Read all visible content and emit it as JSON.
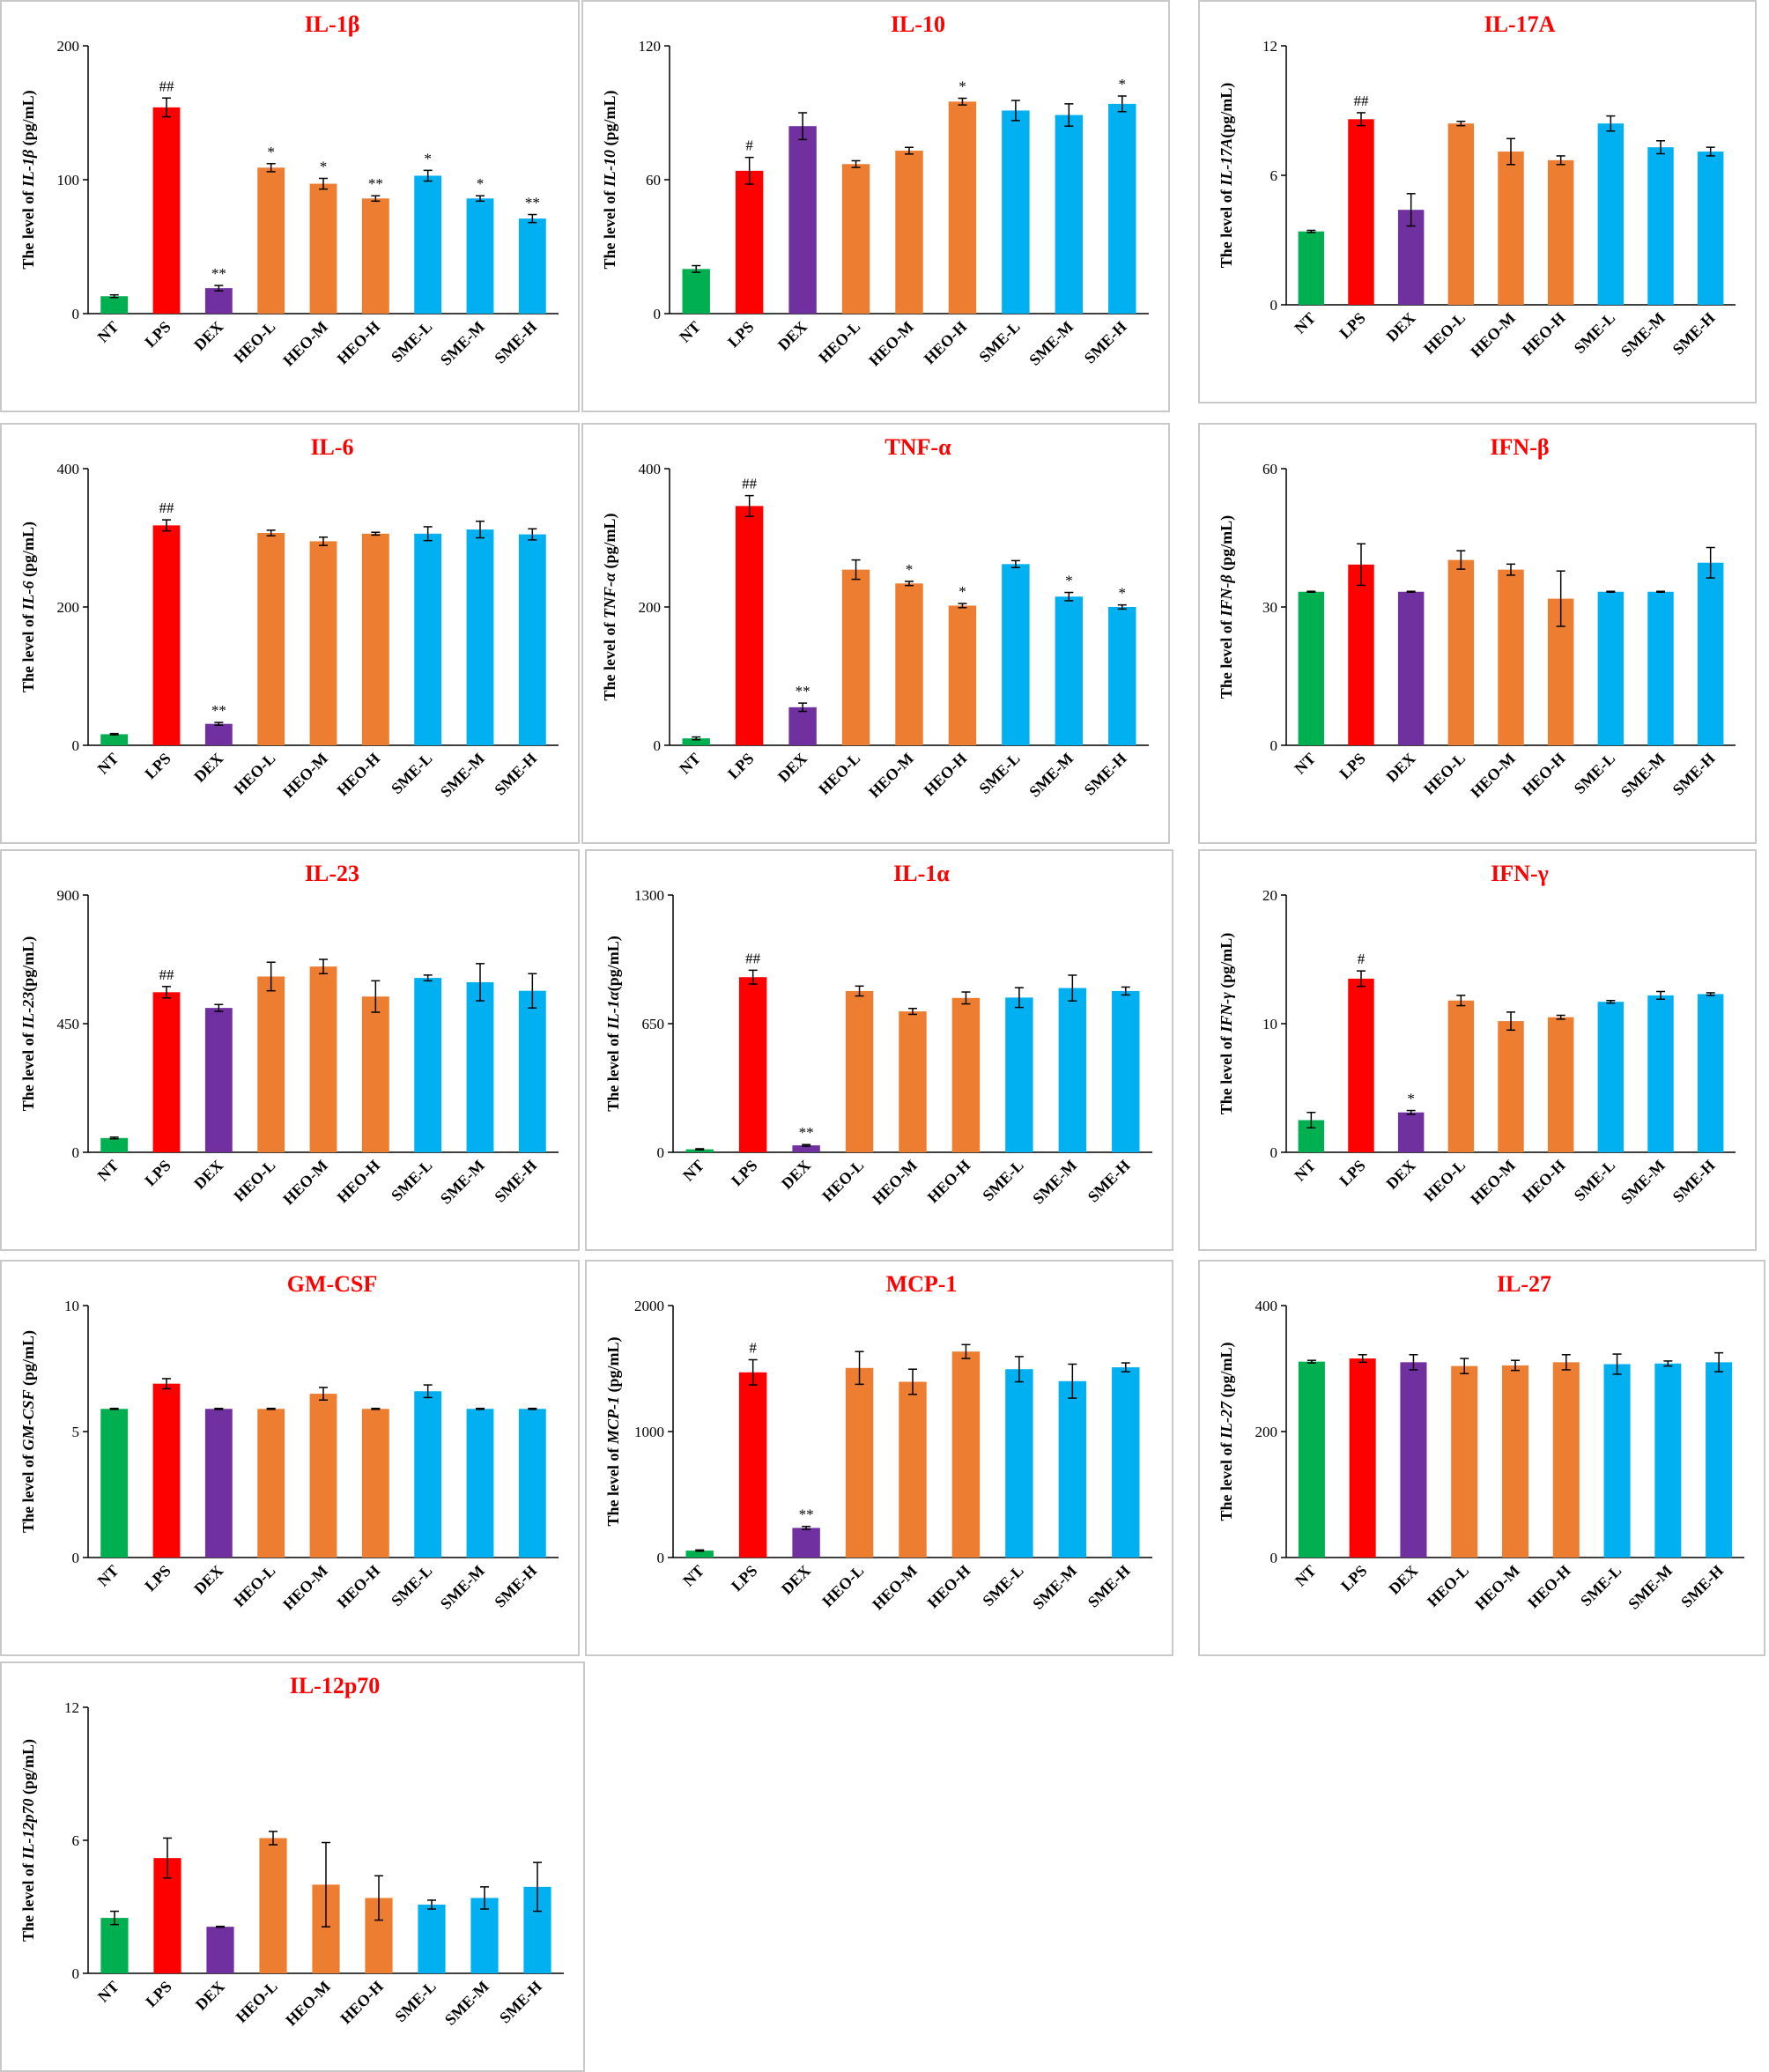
{
  "colors": {
    "NT": "#00b050",
    "LPS": "#ff0000",
    "DEX": "#7030a0",
    "HEO": "#ed7d31",
    "SME": "#00b0f0",
    "title": "#ff0000",
    "axis": "#000000"
  },
  "chart_data": [
    {
      "type": "bar",
      "title": "IL-1β",
      "ylabel_prefix": "The level of ",
      "ylabel_italic": "IL-1β",
      "ylabel_suffix": " (pg/mL)",
      "ylim": [
        0,
        200
      ],
      "yticks": [
        "0",
        "100",
        "200"
      ],
      "categories": [
        "NT",
        "LPS",
        "DEX",
        "HEO-L",
        "HEO-M",
        "HEO-H",
        "SME-L",
        "SME-M",
        "SME-H"
      ],
      "values": [
        13,
        154,
        19,
        109,
        97,
        86,
        103,
        86,
        71
      ],
      "errors": [
        1,
        7,
        2,
        3,
        4,
        2,
        4,
        2,
        3
      ],
      "labels": [
        "",
        "##",
        "**",
        "*",
        "*",
        "**",
        "*",
        "*",
        "**"
      ]
    },
    {
      "type": "bar",
      "title": "IL-10",
      "ylabel_prefix": "The level of ",
      "ylabel_italic": "IL-10",
      "ylabel_suffix": " (pg/mL)",
      "ylim": [
        0,
        120
      ],
      "yticks": [
        "0",
        "60",
        "120"
      ],
      "categories": [
        "NT",
        "LPS",
        "DEX",
        "HEO-L",
        "HEO-M",
        "HEO-H",
        "SME-L",
        "SME-M",
        "SME-H"
      ],
      "values": [
        20,
        64,
        84,
        67,
        73,
        95,
        91,
        89,
        94
      ],
      "errors": [
        1.5,
        6,
        6,
        1.5,
        1.5,
        1.5,
        4.5,
        5,
        3.5
      ],
      "labels": [
        "",
        "#",
        "",
        "",
        "",
        "*",
        "",
        "",
        "*"
      ]
    },
    {
      "type": "bar",
      "title": "IL-17A",
      "ylabel_prefix": "The level of ",
      "ylabel_italic": "IL-17A",
      "ylabel_suffix": "(pg/mL)",
      "ylim": [
        0,
        12
      ],
      "yticks": [
        "0",
        "6",
        "12"
      ],
      "categories": [
        "NT",
        "LPS",
        "DEX",
        "HEO-L",
        "HEO-M",
        "HEO-H",
        "SME-L",
        "SME-M",
        "SME-H"
      ],
      "values": [
        3.4,
        8.6,
        4.4,
        8.4,
        7.1,
        6.7,
        8.4,
        7.3,
        7.1
      ],
      "errors": [
        0.05,
        0.3,
        0.75,
        0.1,
        0.6,
        0.2,
        0.35,
        0.3,
        0.2
      ],
      "labels": [
        "",
        "##",
        "",
        "",
        "",
        "",
        "",
        "",
        ""
      ]
    },
    {
      "type": "bar",
      "title": "IL-6",
      "ylabel_prefix": "The level of ",
      "ylabel_italic": "IL-6",
      "ylabel_suffix": " (pg/mL)",
      "ylim": [
        0,
        400
      ],
      "yticks": [
        "0",
        "200",
        "400"
      ],
      "categories": [
        "NT",
        "LPS",
        "DEX",
        "HEO-L",
        "HEO-M",
        "HEO-H",
        "SME-L",
        "SME-M",
        "SME-H"
      ],
      "values": [
        16,
        318,
        31,
        307,
        295,
        306,
        306,
        312,
        305
      ],
      "errors": [
        1,
        8,
        2,
        4,
        6,
        2,
        10,
        12,
        8
      ],
      "labels": [
        "",
        "##",
        "**",
        "",
        "",
        "",
        "",
        "",
        ""
      ]
    },
    {
      "type": "bar",
      "title": "TNF-α",
      "ylabel_prefix": "The level of ",
      "ylabel_italic": "TNF-α",
      "ylabel_suffix": " (pg/mL)",
      "ylim": [
        0,
        400
      ],
      "yticks": [
        "0",
        "200",
        "400"
      ],
      "categories": [
        "NT",
        "LPS",
        "DEX",
        "HEO-L",
        "HEO-M",
        "HEO-H",
        "SME-L",
        "SME-M",
        "SME-H"
      ],
      "values": [
        10,
        346,
        55,
        254,
        234,
        202,
        262,
        215,
        200
      ],
      "errors": [
        2,
        15,
        6,
        14,
        3,
        3,
        5,
        6,
        3
      ],
      "labels": [
        "",
        "##",
        "**",
        "",
        "*",
        "*",
        "",
        "*",
        "*"
      ]
    },
    {
      "type": "bar",
      "title": "IFN-β",
      "ylabel_prefix": "The level of  ",
      "ylabel_italic": "IFN-β",
      "ylabel_suffix": " (pg/mL)",
      "ylim": [
        0,
        60
      ],
      "yticks": [
        "0",
        "30",
        "60"
      ],
      "categories": [
        "NT",
        "LPS",
        "DEX",
        "HEO-L",
        "HEO-M",
        "HEO-H",
        "SME-L",
        "SME-M",
        "SME-H"
      ],
      "values": [
        33.3,
        39.2,
        33.3,
        40.2,
        38.1,
        31.8,
        33.3,
        33.3,
        39.6
      ],
      "errors": [
        0.1,
        4.5,
        0.1,
        2,
        1.2,
        6,
        0.1,
        0.1,
        3.3
      ],
      "labels": [
        "",
        "",
        "",
        "",
        "",
        "",
        "",
        "",
        ""
      ]
    },
    {
      "type": "bar",
      "title": "IL-23",
      "ylabel_prefix": "The level of  ",
      "ylabel_italic": "IL-23",
      "ylabel_suffix": "(pg/mL)",
      "ylim": [
        0,
        900
      ],
      "yticks": [
        "0",
        "450",
        "900"
      ],
      "categories": [
        "NT",
        "LPS",
        "DEX",
        "HEO-L",
        "HEO-M",
        "HEO-H",
        "SME-L",
        "SME-M",
        "SME-H"
      ],
      "values": [
        50,
        560,
        505,
        615,
        650,
        545,
        610,
        595,
        565
      ],
      "errors": [
        3,
        20,
        12,
        50,
        25,
        55,
        10,
        65,
        60
      ],
      "labels": [
        "",
        "##",
        "",
        "",
        "",
        "",
        "",
        "",
        ""
      ]
    },
    {
      "type": "bar",
      "title": "IL-1α",
      "ylabel_prefix": "The level of  ",
      "ylabel_italic": "IL-1α",
      "ylabel_suffix": "(pg/mL)",
      "ylim": [
        0,
        1300
      ],
      "yticks": [
        "0",
        "650",
        "1300"
      ],
      "categories": [
        "NT",
        "LPS",
        "DEX",
        "HEO-L",
        "HEO-M",
        "HEO-H",
        "SME-L",
        "SME-M",
        "SME-H"
      ],
      "values": [
        15,
        885,
        35,
        815,
        712,
        780,
        782,
        830,
        815
      ],
      "errors": [
        3,
        35,
        4,
        25,
        15,
        30,
        50,
        65,
        20
      ],
      "labels": [
        "",
        "##",
        "**",
        "",
        "",
        "",
        "",
        "",
        ""
      ]
    },
    {
      "type": "bar",
      "title": "IFN-γ",
      "ylabel_prefix": "The level of  ",
      "ylabel_italic": "IFN-γ",
      "ylabel_suffix": " (pg/mL)",
      "ylim": [
        0,
        20
      ],
      "yticks": [
        "0",
        "10",
        "20"
      ],
      "categories": [
        "NT",
        "LPS",
        "DEX",
        "HEO-L",
        "HEO-M",
        "HEO-H",
        "SME-L",
        "SME-M",
        "SME-H"
      ],
      "values": [
        2.5,
        13.5,
        3.1,
        11.8,
        10.2,
        10.5,
        11.7,
        12.2,
        12.3
      ],
      "errors": [
        0.6,
        0.6,
        0.15,
        0.4,
        0.7,
        0.15,
        0.1,
        0.3,
        0.1
      ],
      "labels": [
        "",
        "#",
        "*",
        "",
        "",
        "",
        "",
        "",
        ""
      ]
    },
    {
      "type": "bar",
      "title": "GM-CSF",
      "ylabel_prefix": "The level of  ",
      "ylabel_italic": "GM-CSF",
      "ylabel_suffix": " (pg/mL)",
      "ylim": [
        0,
        10
      ],
      "yticks": [
        "0",
        "5",
        "10"
      ],
      "categories": [
        "NT",
        "LPS",
        "DEX",
        "HEO-L",
        "HEO-M",
        "HEO-H",
        "SME-L",
        "SME-M",
        "SME-H"
      ],
      "values": [
        5.9,
        6.9,
        5.9,
        5.9,
        6.5,
        5.9,
        6.6,
        5.9,
        5.9
      ],
      "errors": [
        0.02,
        0.2,
        0.02,
        0.02,
        0.25,
        0.02,
        0.25,
        0.02,
        0.02
      ],
      "labels": [
        "",
        "",
        "",
        "",
        "",
        "",
        "",
        "",
        ""
      ]
    },
    {
      "type": "bar",
      "title": "MCP-1",
      "ylabel_prefix": "The level of  ",
      "ylabel_italic": "MCP-1",
      "ylabel_suffix": " (pg/mL)",
      "ylim": [
        0,
        2000
      ],
      "yticks": [
        "0",
        "1000",
        "2000"
      ],
      "categories": [
        "NT",
        "LPS",
        "DEX",
        "HEO-L",
        "HEO-M",
        "HEO-H",
        "SME-L",
        "SME-M",
        "SME-H"
      ],
      "values": [
        55,
        1470,
        235,
        1505,
        1395,
        1635,
        1495,
        1400,
        1510
      ],
      "errors": [
        5,
        100,
        12,
        130,
        100,
        55,
        100,
        135,
        35
      ],
      "labels": [
        "",
        "#",
        "**",
        "",
        "",
        "",
        "",
        "",
        ""
      ]
    },
    {
      "type": "bar",
      "title": "IL-27",
      "ylabel_prefix": "The level of ",
      "ylabel_italic": "IL-27",
      "ylabel_suffix": " (pg/mL)",
      "ylim": [
        0,
        400
      ],
      "yticks": [
        "0",
        "200",
        "400"
      ],
      "categories": [
        "NT",
        "LPS",
        "DEX",
        "HEO-L",
        "HEO-M",
        "HEO-H",
        "SME-L",
        "SME-M",
        "SME-H"
      ],
      "values": [
        311,
        316,
        310,
        304,
        305,
        310,
        307,
        308,
        310
      ],
      "errors": [
        2,
        6,
        12,
        12,
        8,
        12,
        16,
        4,
        15
      ],
      "labels": [
        "",
        "",
        "",
        "",
        "",
        "",
        "",
        "",
        ""
      ]
    },
    {
      "type": "bar",
      "title": "IL-12p70",
      "ylabel_prefix": "The level of  ",
      "ylabel_italic": "IL-12p70",
      "ylabel_suffix": " (pg/mL)",
      "ylim": [
        0,
        12
      ],
      "yticks": [
        "0",
        "6",
        "12"
      ],
      "categories": [
        "NT",
        "LPS",
        "DEX",
        "HEO-L",
        "HEO-M",
        "HEO-H",
        "SME-L",
        "SME-M",
        "SME-H"
      ],
      "values": [
        2.5,
        5.2,
        2.1,
        6.1,
        4.0,
        3.4,
        3.1,
        3.4,
        3.9
      ],
      "errors": [
        0.3,
        0.9,
        0.02,
        0.3,
        1.9,
        1.0,
        0.2,
        0.5,
        1.1
      ],
      "labels": [
        "",
        "",
        "",
        "",
        "",
        "",
        "",
        "",
        ""
      ]
    }
  ]
}
